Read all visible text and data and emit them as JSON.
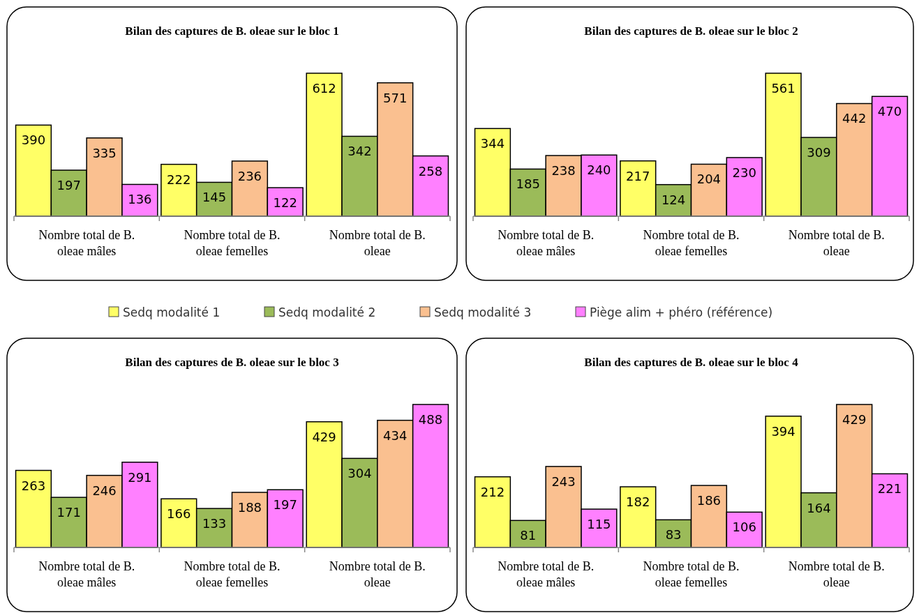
{
  "chart_data": [
    {
      "type": "bar",
      "title": "Bilan des captures de B. oleae sur le bloc 1",
      "categories": [
        "Nombre total de B. oleae mâles",
        "Nombre total de B. oleae femelles",
        "Nombre total de B. oleae"
      ],
      "data_labels": true,
      "legend": "bottom",
      "series": [
        {
          "name": "Sedq modalité 1",
          "color": "#ffff66",
          "values": [
            390,
            222,
            612
          ]
        },
        {
          "name": "Sedq modalité 2",
          "color": "#9bbb59",
          "values": [
            197,
            145,
            342
          ]
        },
        {
          "name": "Sedq modalité 3",
          "color": "#fac090",
          "values": [
            335,
            236,
            571
          ]
        },
        {
          "name": "Piège alim + phéro (référence)",
          "color": "#ff80ff",
          "values": [
            136,
            122,
            258
          ]
        }
      ]
    },
    {
      "type": "bar",
      "title": "Bilan des captures de B. oleae sur le bloc 2",
      "categories": [
        "Nombre total de B. oleae mâles",
        "Nombre total de B. oleae femelles",
        "Nombre total de B. oleae"
      ],
      "data_labels": true,
      "series": [
        {
          "color": "#ffff66",
          "values": [
            344,
            217,
            561
          ]
        },
        {
          "color": "#9bbb59",
          "values": [
            185,
            124,
            309
          ]
        },
        {
          "color": "#fac090",
          "values": [
            238,
            204,
            442
          ]
        },
        {
          "color": "#ff80ff",
          "values": [
            240,
            230,
            470
          ]
        }
      ]
    },
    {
      "type": "bar",
      "title": "Bilan des captures de B. oleae sur le bloc 3",
      "categories": [
        "Nombre total de B. oleae mâles",
        "Nombre total de B. oleae femelles",
        "Nombre total de B. oleae"
      ],
      "data_labels": true,
      "series": [
        {
          "color": "#ffff66",
          "values": [
            263,
            166,
            429
          ]
        },
        {
          "color": "#9bbb59",
          "values": [
            171,
            133,
            304
          ]
        },
        {
          "color": "#fac090",
          "values": [
            246,
            188,
            434
          ]
        },
        {
          "color": "#ff80ff",
          "values": [
            291,
            197,
            488
          ]
        }
      ]
    },
    {
      "type": "bar",
      "title": "Bilan des captures de B. oleae sur le bloc 4",
      "categories": [
        "Nombre total de B. oleae mâles",
        "Nombre total de B. oleae femelles",
        "Nombre total de B. oleae"
      ],
      "data_labels": true,
      "series": [
        {
          "color": "#ffff66",
          "values": [
            212,
            182,
            394
          ]
        },
        {
          "color": "#9bbb59",
          "values": [
            81,
            83,
            164
          ]
        },
        {
          "color": "#fac090",
          "values": [
            243,
            186,
            429
          ]
        },
        {
          "color": "#ff80ff",
          "values": [
            115,
            106,
            221
          ]
        }
      ]
    }
  ]
}
